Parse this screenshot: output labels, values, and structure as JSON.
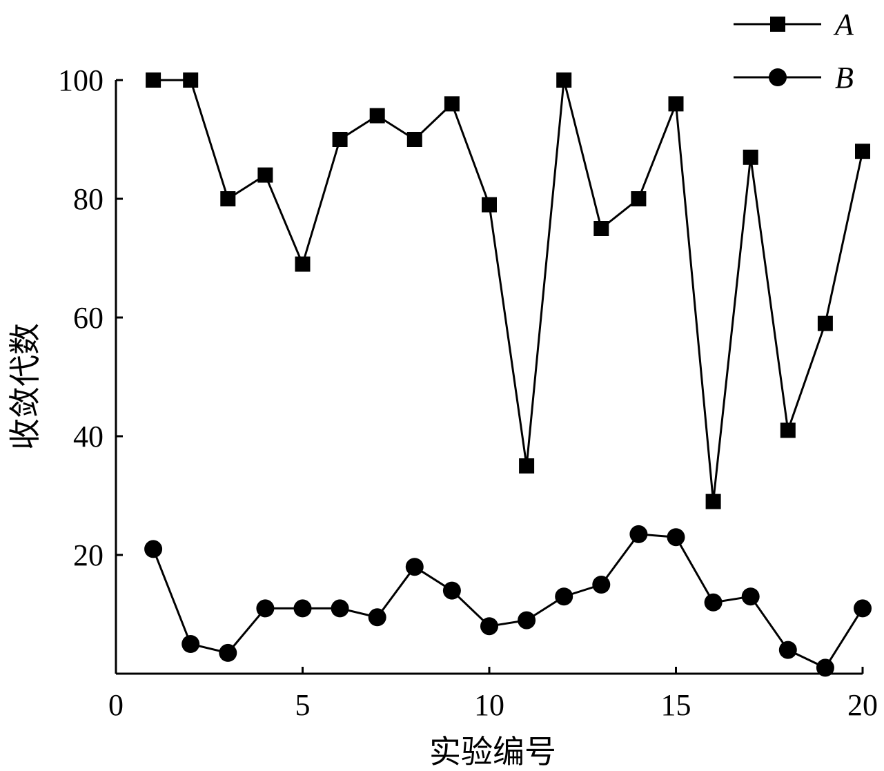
{
  "chart_data": {
    "type": "line",
    "title": "",
    "xlabel": "实验编号",
    "ylabel": "收敛代数",
    "xlim": [
      0,
      20
    ],
    "ylim": [
      0,
      100
    ],
    "xticks": [
      0,
      5,
      10,
      15,
      20
    ],
    "yticks": [
      20,
      40,
      60,
      80,
      100
    ],
    "xtick_labels": [
      "0",
      "5",
      "10",
      "15",
      "20"
    ],
    "ytick_labels": [
      "20",
      "40",
      "60",
      "80",
      "100"
    ],
    "grid": false,
    "legend_position": "top-right",
    "x": [
      1,
      2,
      3,
      4,
      5,
      6,
      7,
      8,
      9,
      10,
      11,
      12,
      13,
      14,
      15,
      16,
      17,
      18,
      19,
      20
    ],
    "series": [
      {
        "name": "A",
        "marker": "square",
        "color": "#000000",
        "values": [
          100,
          100,
          80,
          84,
          69,
          90,
          94,
          90,
          96,
          79,
          35,
          100,
          75,
          80,
          96,
          29,
          87,
          41,
          59,
          88
        ]
      },
      {
        "name": "B",
        "marker": "circle",
        "color": "#000000",
        "values": [
          21,
          5,
          3.5,
          11,
          11,
          11,
          9.5,
          18,
          14,
          8,
          9,
          13,
          15,
          23.5,
          23,
          12,
          13,
          4,
          1,
          11
        ]
      }
    ]
  }
}
